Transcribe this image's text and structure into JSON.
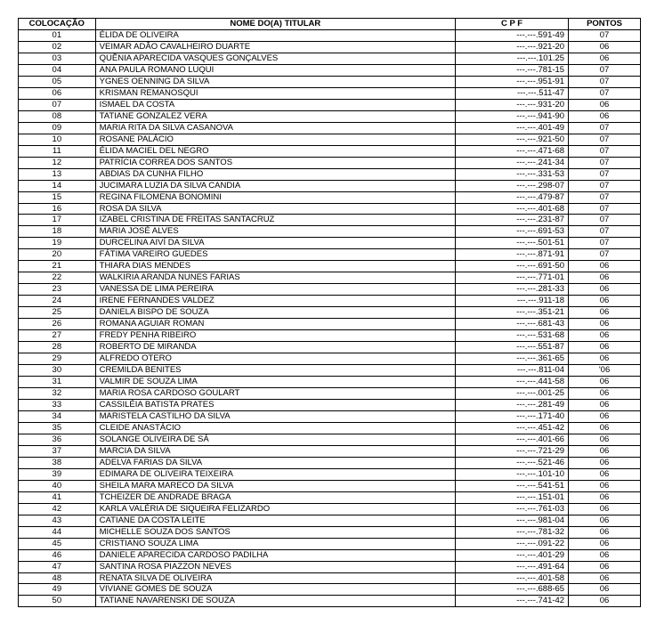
{
  "table": {
    "columns": [
      "COLOCAÇÃO",
      "NOME DO(A) TITULAR",
      "C P F",
      "PONTOS"
    ],
    "rows": [
      [
        "01",
        "ÉLIDA   DE   OLIVEIRA",
        "---.---.591-49",
        "07"
      ],
      [
        "02",
        "VEIMAR ADÃO CAVALHEIRO DUARTE",
        "---.---.921-20",
        "06"
      ],
      [
        "03",
        "QUÊNIA APARECIDA VASQUES GONÇALVES",
        "---.---.101.25",
        "06"
      ],
      [
        "04",
        "ANA PAULA ROMANO LUQUI",
        "---.---.781-15",
        "07"
      ],
      [
        "05",
        "YGNES OENNING DA SILVA",
        "---.---.951-91",
        "07"
      ],
      [
        "06",
        "KRISMAN   REMANOSQUI",
        "---.---.511-47",
        "07"
      ],
      [
        "07",
        "ISMAEL   DA   COSTA",
        "---.---.931-20",
        "06"
      ],
      [
        "08",
        "TATIANE GONZALEZ VERA",
        "---.---.941-90",
        "06"
      ],
      [
        "09",
        "MARIA RITA DA SILVA CASANOVA",
        "---.---.401-49",
        "07"
      ],
      [
        "10",
        "ROSANE   PALÁCIO",
        "---.---.921-50",
        "07"
      ],
      [
        "11",
        "ÉLIDA MACIEL DEL NEGRO",
        "---.---.471-68",
        "07"
      ],
      [
        "12",
        "PATRÍCIA CORREA DOS SANTOS",
        "---.---.241-34",
        "07"
      ],
      [
        "13",
        "ABDIAS DA CUNHA FILHO",
        "---.---.331-53",
        "07"
      ],
      [
        "14",
        "JUCIMARA LUZIA DA SILVA CANDIA",
        "---.---.298-07",
        "07"
      ],
      [
        "15",
        "REGINA FILOMENA BONOMINI",
        "---.---.479-87",
        "07"
      ],
      [
        "16",
        "ROSA   DA   SILVA",
        "---.---.401-68",
        "07"
      ],
      [
        "17",
        "IZABEL CRISTINA DE FREITAS SANTACRUZ",
        "---.---.231-87",
        "07"
      ],
      [
        "18",
        "MARIA  JOSÉ  ALVES",
        "---.---.691-53",
        "07"
      ],
      [
        "19",
        "DURCELINA AIVÍ DA SILVA",
        "---.---.501-51",
        "07"
      ],
      [
        "20",
        "FÁTIMA VAREIRO GUEDES",
        "---.---.871-91",
        "07"
      ],
      [
        "21",
        "THIARA  DIAS  MENDES",
        "---.---.691-50",
        "06"
      ],
      [
        "22",
        "WALKIRIA ARANDA NUNES FARIAS",
        "---.---.771-01",
        "06"
      ],
      [
        "23",
        "VANESSA DE LIMA PEREIRA",
        "---.---.281-33",
        "06"
      ],
      [
        "24",
        "IRENE FERNANDES VALDEZ",
        "---.---.911-18",
        "06"
      ],
      [
        "25",
        "DANIELA BISPO DE SOUZA",
        "---.---.351-21",
        "06"
      ],
      [
        "26",
        "ROMANA AGUIAR ROMAN",
        "---.---.681-43",
        "06"
      ],
      [
        "27",
        "FREDY  PENHA  RIBEIRO",
        "---.---.531-68",
        "06"
      ],
      [
        "28",
        "ROBERTO   DE   MIRANDA",
        "---.---.551-87",
        "06"
      ],
      [
        "29",
        "ALFREDO    OTERO",
        "---.---.361-65",
        "06"
      ],
      [
        "30",
        "CREMILDA    BENITES",
        "---.---.811-04",
        "'06"
      ],
      [
        "31",
        "VALMIR DE SOUZA LIMA",
        "---.---.441-58",
        "06"
      ],
      [
        "32",
        "MARIA ROSA CARDOSO GOULART",
        "---.---.001-25",
        "06"
      ],
      [
        "33",
        "CASSILÉIA BATISTA PRATES",
        "---.---.281-49",
        "06"
      ],
      [
        "34",
        "MARISTELA CASTILHO DA SILVA",
        "---.---.171-40",
        "06"
      ],
      [
        "35",
        "CLEIDE    ANASTÁCIO",
        "---.---.451-42",
        "06"
      ],
      [
        "36",
        "SOLANGE OLIVEIRA DE SÁ",
        "---.---.401-66",
        "06"
      ],
      [
        "37",
        "MARCIA   DA   SILVA",
        "---.---.721-29",
        "06"
      ],
      [
        "38",
        "ADELVA FARIAS DA SILVA",
        "---.---.521-46",
        "06"
      ],
      [
        "39",
        "EDIMARA DE OLIVEIRA TEIXEIRA",
        "---.---.101-10",
        "06"
      ],
      [
        "40",
        "SHEILA MARA MARECO DA SILVA",
        "---.---.541-51",
        "06"
      ],
      [
        "41",
        "TCHEIZER DE ANDRADE BRAGA",
        "---.---.151-01",
        "06"
      ],
      [
        "42",
        "KARLA VALÉRIA DE SIQUEIRA FELIZARDO",
        "---.---.761-03",
        "06"
      ],
      [
        "43",
        "CATIANE DA COSTA LEITE",
        "---.---.981-04",
        "06"
      ],
      [
        "44",
        "MICHELLE SOUZA DOS SANTOS",
        "---.---.781-32",
        "06"
      ],
      [
        "45",
        "CRISTIANO  SOUZA  LIMA",
        "---.---.091-22",
        "06"
      ],
      [
        "46",
        "DANIELE APARECIDA CARDOSO PADILHA",
        "---.---.401-29",
        "06"
      ],
      [
        "47",
        "SANTINA ROSA PIAZZON NEVES",
        "---.---.491-64",
        "06"
      ],
      [
        "48",
        "RENATA SILVA DE OLIVEIRA",
        "---.---.401-58",
        "06"
      ],
      [
        "49",
        "VIVIANE GOMES DE SOUZA",
        "---.---.688-65",
        "06"
      ],
      [
        "50",
        "TATIANE NAVARENSKI DE SOUZA",
        "---.---.741-42",
        "06"
      ]
    ]
  }
}
